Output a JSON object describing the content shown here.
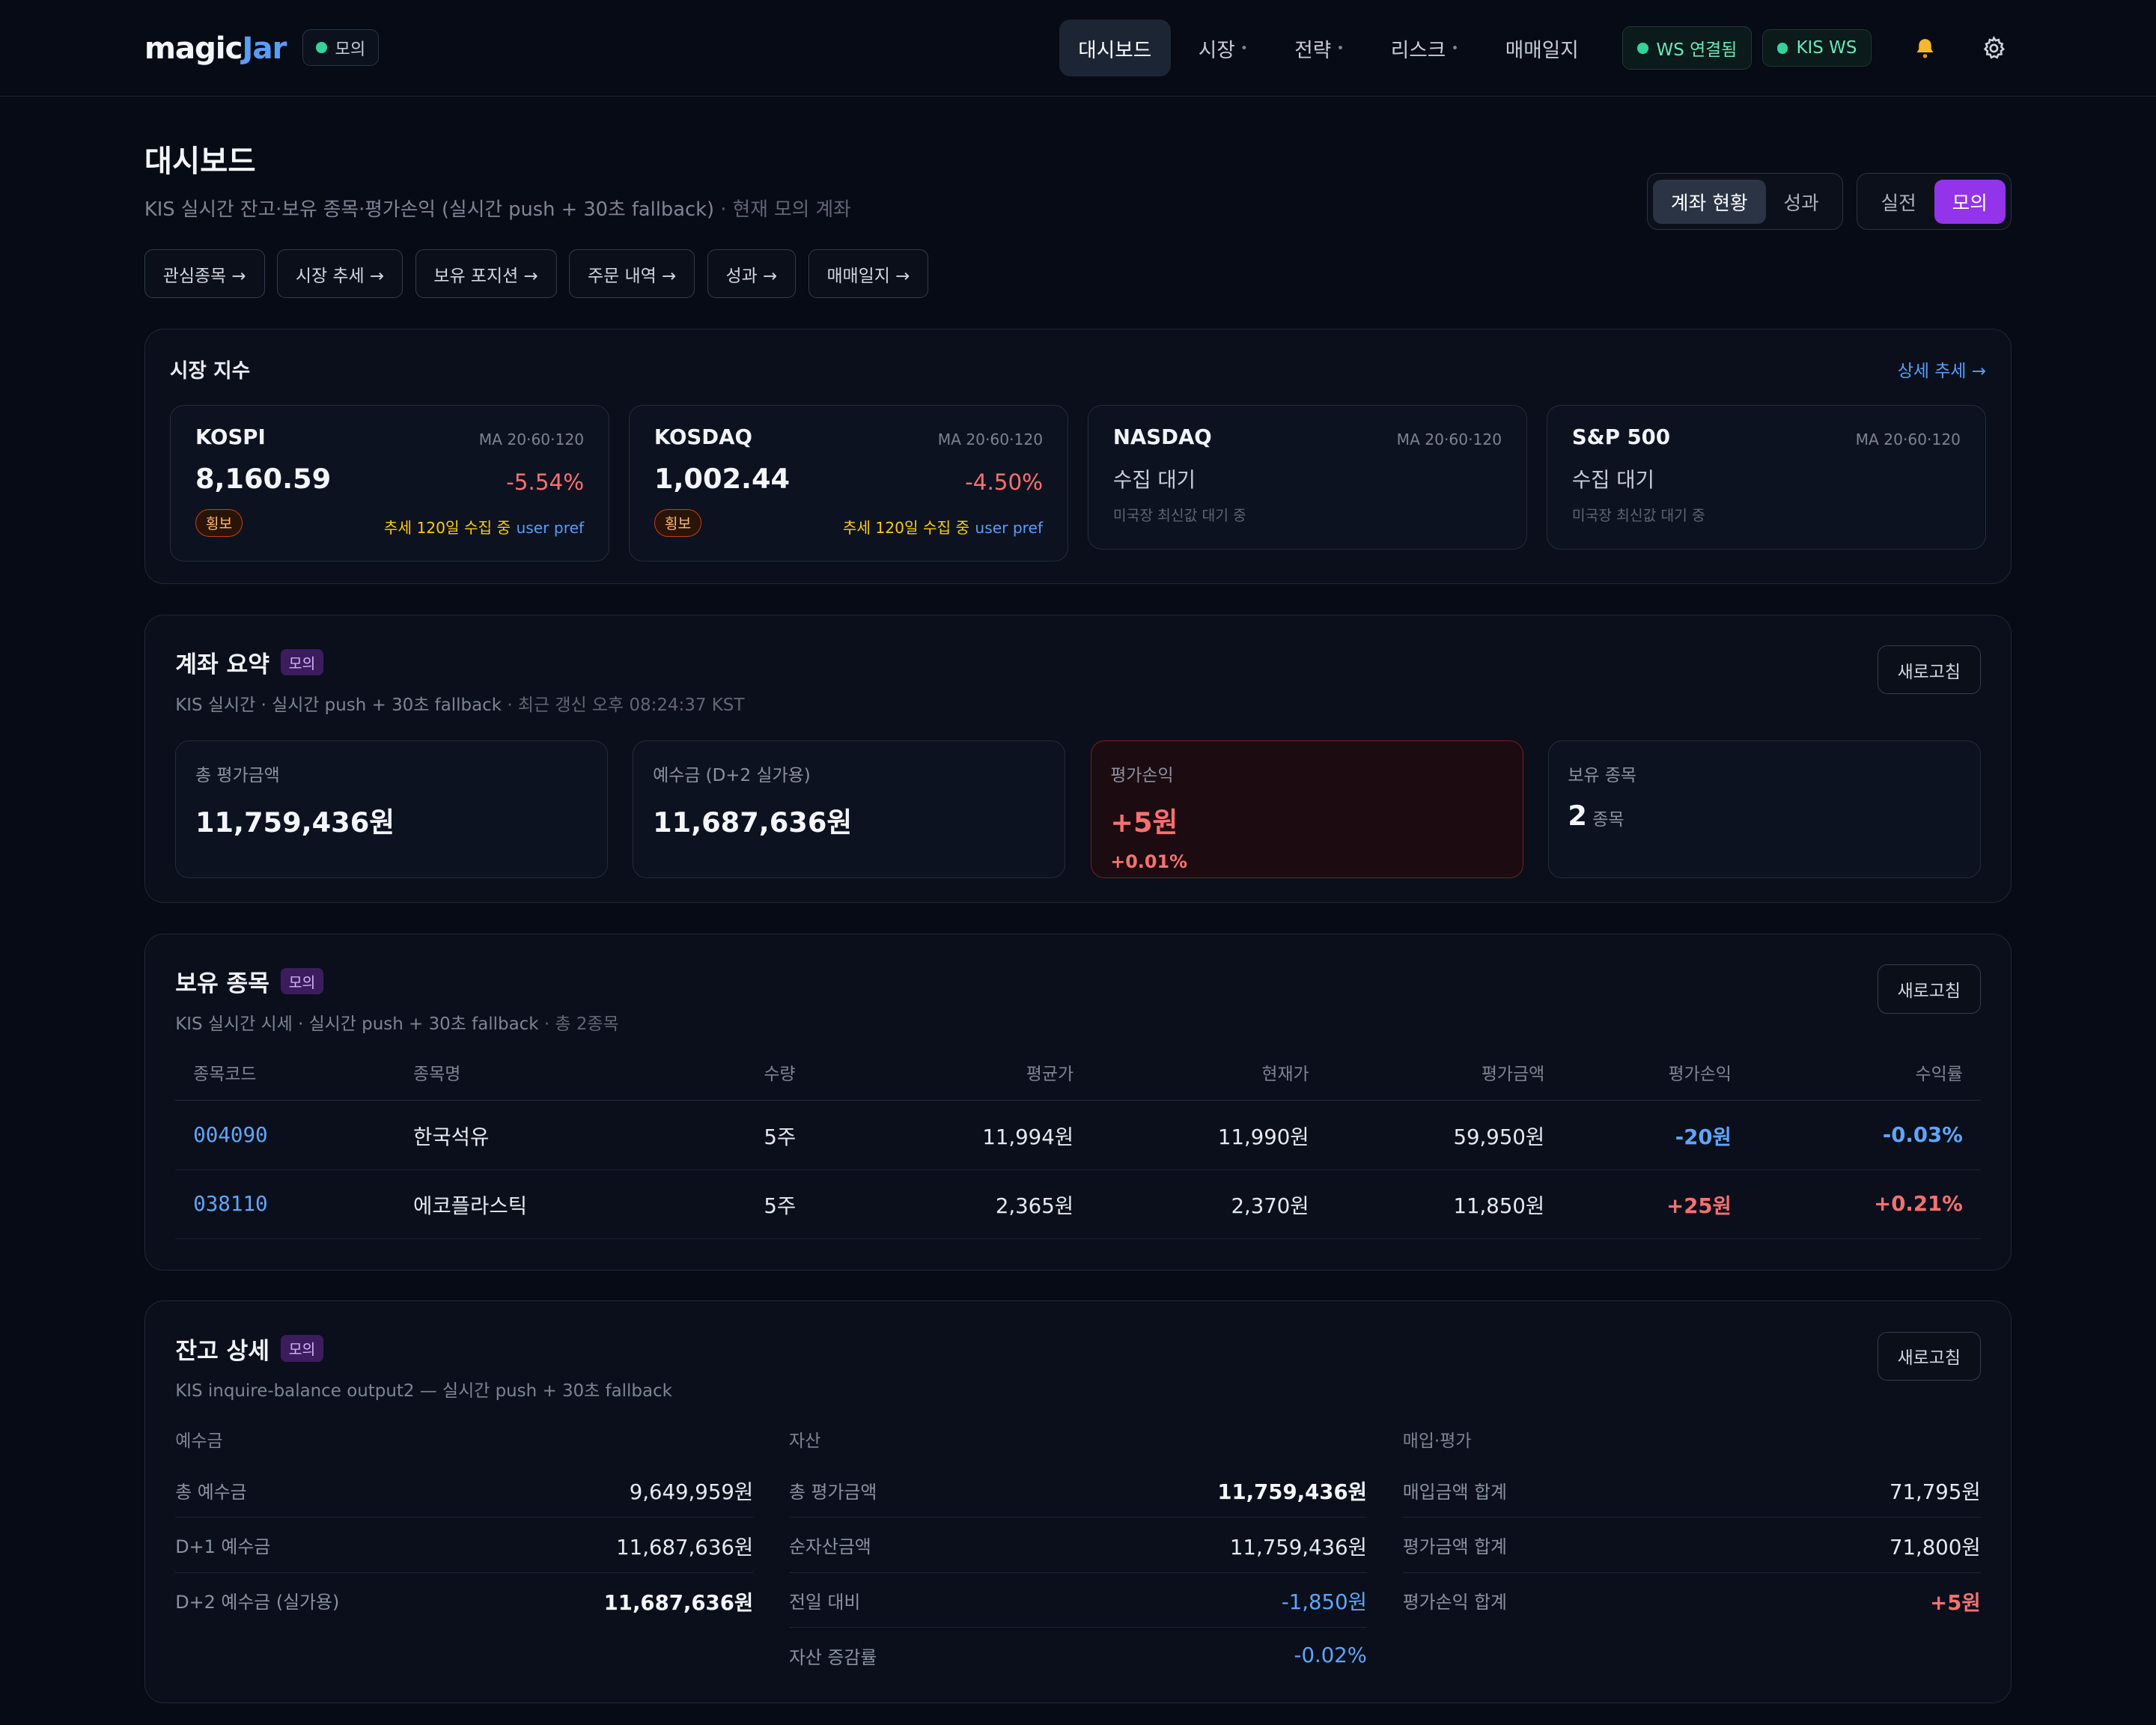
{
  "nav": {
    "logo_main": "magic",
    "logo_accent": "Jar",
    "mode": "모의",
    "items": [
      {
        "label": "대시보드",
        "active": true,
        "caret": false
      },
      {
        "label": "시장",
        "active": false,
        "caret": true
      },
      {
        "label": "전략",
        "active": false,
        "caret": true
      },
      {
        "label": "리스크",
        "active": false,
        "caret": true
      },
      {
        "label": "매매일지",
        "active": false,
        "caret": false
      }
    ],
    "ws_status": "WS 연결됨",
    "kis_ws": "KIS WS",
    "bell_icon": "bell-icon",
    "settings_icon": "gear-icon"
  },
  "header": {
    "title": "대시보드",
    "subtitle": "KIS 실시간 잔고·보유 종목·평가손익 (실시간 push + 30초 fallback)",
    "subtitle_suffix": " · 현재 모의 계좌",
    "view_toggle": [
      "계좌 현황",
      "성과"
    ],
    "mode_toggle": [
      "실전",
      "모의"
    ]
  },
  "quick_links": [
    "관심종목 →",
    "시장 추세 →",
    "보유 포지션 →",
    "주문 내역 →",
    "성과 →",
    "매매일지 →"
  ],
  "market": {
    "title": "시장 지수",
    "detail_link": "상세 추세 →",
    "indices": [
      {
        "name": "KOSPI",
        "ma": "MA 20·60·120",
        "value": "8,160.59",
        "change": "-5.54%",
        "badge": "횡보",
        "trend": "추세 120일 수집 중",
        "pref": "user pref"
      },
      {
        "name": "KOSDAQ",
        "ma": "MA 20·60·120",
        "value": "1,002.44",
        "change": "-4.50%",
        "badge": "횡보",
        "trend": "추세 120일 수집 중",
        "pref": "user pref"
      },
      {
        "name": "NASDAQ",
        "ma": "MA 20·60·120",
        "wait": "수집 대기",
        "note": "미국장 최신값 대기 중"
      },
      {
        "name": "S&P 500",
        "ma": "MA 20·60·120",
        "wait": "수집 대기",
        "note": "미국장 최신값 대기 중"
      }
    ]
  },
  "summary": {
    "title": "계좌 요약",
    "tag": "모의",
    "subtitle": "KIS 실시간 · 실시간 push + 30초 fallback",
    "updated": " · 최근 갱신 오후 08:24:37 KST",
    "refresh": "새로고침",
    "cards": {
      "total_label": "총 평가금액",
      "total_value": "11,759,436원",
      "deposit_label": "예수금 (D+2 실가용)",
      "deposit_value": "11,687,636원",
      "pnl_label": "평가손익",
      "pnl_value": "+5원",
      "pnl_pct": "+0.01%",
      "holdings_label": "보유 종목",
      "holdings_value": "2",
      "holdings_unit": "종목"
    }
  },
  "holdings": {
    "title": "보유 종목",
    "tag": "모의",
    "subtitle": "KIS 실시간 시세 · 실시간 push + 30초 fallback",
    "count": " · 총 2종목",
    "refresh": "새로고침",
    "columns": [
      "종목코드",
      "종목명",
      "수량",
      "평균가",
      "현재가",
      "평가금액",
      "평가손익",
      "수익률"
    ],
    "rows": [
      {
        "code": "004090",
        "name": "한국석유",
        "qty": "5주",
        "avg": "11,994원",
        "price": "11,990원",
        "value": "59,950원",
        "pnl": "-20원",
        "rate": "-0.03%",
        "dir": "neg"
      },
      {
        "code": "038110",
        "name": "에코플라스틱",
        "qty": "5주",
        "avg": "2,365원",
        "price": "2,370원",
        "value": "11,850원",
        "pnl": "+25원",
        "rate": "+0.21%",
        "dir": "pos"
      }
    ]
  },
  "balance": {
    "title": "잔고 상세",
    "tag": "모의",
    "subtitle": "KIS inquire-balance output2 — 실시간 push + 30초 fallback",
    "refresh": "새로고침",
    "groups": [
      {
        "head": "예수금",
        "rows": [
          {
            "label": "총 예수금",
            "value": "9,649,959원",
            "style": ""
          },
          {
            "label": "D+1 예수금",
            "value": "11,687,636원",
            "style": ""
          },
          {
            "label": "D+2 예수금 (실가용)",
            "value": "11,687,636원",
            "style": "bold"
          }
        ]
      },
      {
        "head": "자산",
        "rows": [
          {
            "label": "총 평가금액",
            "value": "11,759,436원",
            "style": "bold"
          },
          {
            "label": "순자산금액",
            "value": "11,759,436원",
            "style": ""
          },
          {
            "label": "전일 대비",
            "value": "-1,850원",
            "style": "blue"
          },
          {
            "label": "자산 증감률",
            "value": "-0.02%",
            "style": "blue"
          }
        ]
      },
      {
        "head": "매입·평가",
        "rows": [
          {
            "label": "매입금액 합계",
            "value": "71,795원",
            "style": ""
          },
          {
            "label": "평가금액 합계",
            "value": "71,800원",
            "style": ""
          },
          {
            "label": "평가손익 합계",
            "value": "+5원",
            "style": "red"
          }
        ]
      }
    ]
  }
}
